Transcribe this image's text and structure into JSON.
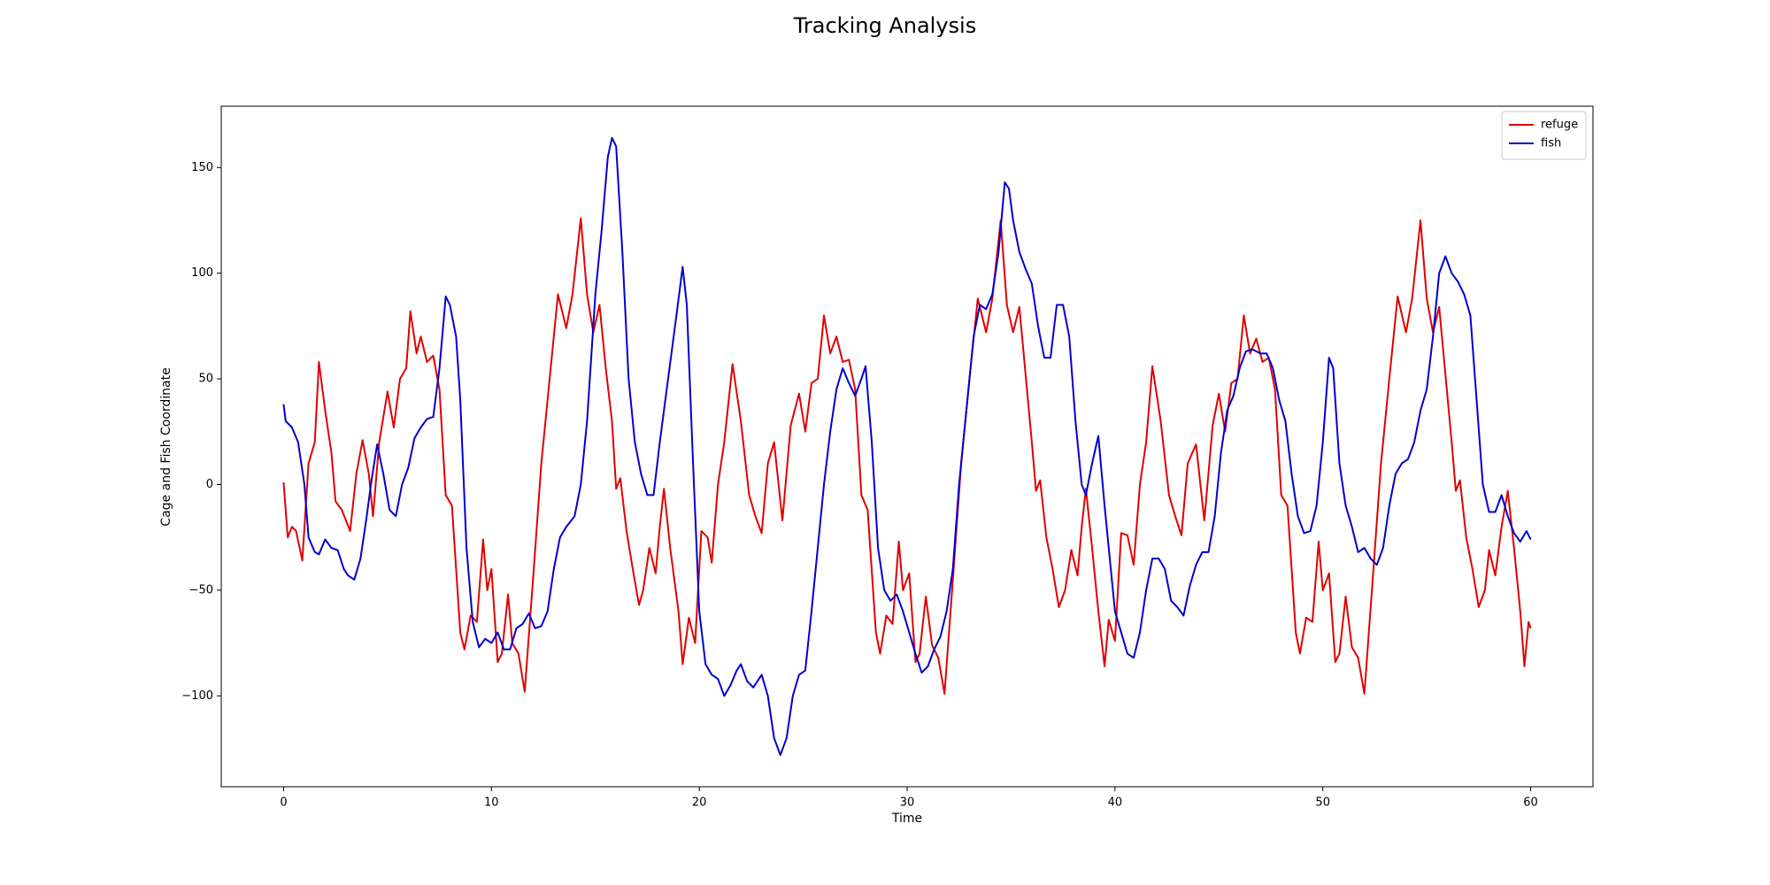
{
  "chart_data": {
    "type": "line",
    "title": "Tracking Analysis",
    "x_label": "Time",
    "y_label": "Cage and Fish Coordinate",
    "xlim": [
      -3,
      63
    ],
    "ylim": [
      -143,
      179
    ],
    "xticks": [
      0,
      10,
      20,
      30,
      40,
      50,
      60
    ],
    "yticks": [
      {
        "value": -100,
        "label": "−100"
      },
      {
        "value": -50,
        "label": "−50"
      },
      0,
      50,
      100,
      150
    ],
    "legend": "upper right",
    "series": [
      {
        "name": "refuge",
        "color": "#e00000",
        "x": [
          0,
          0.2,
          0.4,
          0.6,
          0.9,
          1.2,
          1.5,
          1.7,
          2.0,
          2.3,
          2.5,
          2.8,
          3.2,
          3.5,
          3.8,
          4.1,
          4.3,
          4.6,
          5.0,
          5.3,
          5.6,
          5.9,
          6.1,
          6.4,
          6.6,
          6.9,
          7.2,
          7.5,
          7.8,
          8.1,
          8.5,
          8.7,
          9.0,
          9.3,
          9.6,
          9.8,
          10.0,
          10.3,
          10.5,
          10.8,
          11.0,
          11.3,
          11.6,
          12.0,
          12.4,
          12.8,
          13.2,
          13.6,
          13.9,
          14.3,
          14.6,
          14.9,
          15.2,
          15.5,
          15.8,
          16.0,
          16.2,
          16.5,
          16.8,
          17.1,
          17.3,
          17.6,
          17.9,
          18.1,
          18.3,
          18.6,
          19.0,
          19.2,
          19.5,
          19.8,
          20.1,
          20.4,
          20.6,
          20.9,
          21.2,
          21.6,
          22.0,
          22.4,
          22.7,
          23.0,
          23.3,
          23.6,
          24.0,
          24.4,
          24.8,
          25.1,
          25.4,
          25.7,
          26.0,
          26.3,
          26.6,
          26.9,
          27.2,
          27.5,
          27.8,
          28.1,
          28.5,
          28.7,
          29.0,
          29.3,
          29.6,
          29.8,
          30.1,
          30.4,
          30.6,
          30.9,
          31.2,
          31.5,
          31.8,
          32.2,
          32.6,
          33.0,
          33.4,
          33.8,
          34.1,
          34.5,
          34.8,
          35.1,
          35.4,
          35.7,
          36.0,
          36.2,
          36.4,
          36.7,
          37.0,
          37.3,
          37.6,
          37.9,
          38.2,
          38.4,
          38.6,
          38.9,
          39.2,
          39.5,
          39.7,
          40.0,
          40.3,
          40.6,
          40.9,
          41.2,
          41.5,
          41.8,
          42.2,
          42.6,
          42.9,
          43.2,
          43.5,
          43.9,
          44.3,
          44.7,
          45.0,
          45.3,
          45.6,
          45.9,
          46.2,
          46.5,
          46.8,
          47.1,
          47.4,
          47.7,
          48.0,
          48.3,
          48.7,
          48.9,
          49.2,
          49.5,
          49.8,
          50.0,
          50.3,
          50.6,
          50.8,
          51.1,
          51.4,
          51.7,
          52.0,
          52.4,
          52.8,
          53.2,
          53.6,
          54.0,
          54.3,
          54.7,
          55.0,
          55.3,
          55.6,
          55.9,
          56.2,
          56.4,
          56.6,
          56.9,
          57.2,
          57.5,
          57.8,
          58.0,
          58.3,
          58.6,
          58.9,
          59.2,
          59.5,
          59.7,
          59.9,
          60.0
        ],
        "values": [
          1,
          -25,
          -20,
          -22,
          -36,
          10,
          20,
          58,
          35,
          15,
          -8,
          -12,
          -22,
          5,
          21,
          5,
          -15,
          20,
          44,
          27,
          50,
          55,
          82,
          62,
          70,
          58,
          61,
          45,
          -5,
          -10,
          -70,
          -78,
          -62,
          -65,
          -26,
          -50,
          -40,
          -84,
          -80,
          -52,
          -75,
          -80,
          -98,
          -45,
          10,
          50,
          90,
          74,
          90,
          126,
          90,
          72,
          85,
          55,
          30,
          -2,
          3,
          -22,
          -40,
          -57,
          -50,
          -30,
          -42,
          -20,
          -2,
          -30,
          -60,
          -85,
          -63,
          -75,
          -22,
          -25,
          -37,
          0,
          20,
          57,
          30,
          -5,
          -15,
          -23,
          10,
          20,
          -17,
          28,
          43,
          25,
          48,
          50,
          80,
          62,
          70,
          58,
          59,
          45,
          -5,
          -12,
          -70,
          -80,
          -62,
          -66,
          -27,
          -50,
          -42,
          -84,
          -80,
          -53,
          -76,
          -82,
          -99,
          -45,
          10,
          50,
          88,
          72,
          88,
          125,
          85,
          72,
          84,
          52,
          20,
          -3,
          2,
          -25,
          -40,
          -58,
          -50,
          -31,
          -43,
          -20,
          -2,
          -30,
          -60,
          -86,
          -64,
          -74,
          -23,
          -24,
          -38,
          0,
          20,
          56,
          30,
          -5,
          -15,
          -24,
          10,
          19,
          -17,
          28,
          43,
          25,
          48,
          50,
          80,
          62,
          69,
          58,
          60,
          45,
          -5,
          -10,
          -70,
          -80,
          -63,
          -65,
          -27,
          -50,
          -42,
          -84,
          -80,
          -53,
          -77,
          -82,
          -99,
          -45,
          10,
          50,
          89,
          72,
          88,
          125,
          88,
          72,
          84,
          52,
          20,
          -3,
          2,
          -25,
          -40,
          -58,
          -50,
          -31,
          -43,
          -20,
          -3,
          -30,
          -60,
          -86,
          -65,
          -68
        ]
      },
      {
        "name": "fish",
        "color": "#0000d0",
        "x": [
          0,
          0.1,
          0.4,
          0.7,
          1.0,
          1.2,
          1.5,
          1.7,
          2.0,
          2.3,
          2.6,
          2.9,
          3.1,
          3.4,
          3.7,
          4.0,
          4.2,
          4.5,
          4.8,
          5.1,
          5.4,
          5.7,
          6.0,
          6.3,
          6.6,
          6.9,
          7.2,
          7.5,
          7.8,
          8.0,
          8.3,
          8.5,
          8.8,
          9.1,
          9.4,
          9.7,
          10.0,
          10.3,
          10.6,
          10.9,
          11.2,
          11.5,
          11.8,
          12.1,
          12.4,
          12.7,
          13.0,
          13.3,
          13.6,
          14.0,
          14.3,
          14.6,
          15.0,
          15.3,
          15.6,
          15.8,
          16.0,
          16.3,
          16.6,
          16.9,
          17.2,
          17.5,
          17.8,
          18.1,
          18.5,
          18.9,
          19.2,
          19.4,
          19.7,
          20.0,
          20.3,
          20.6,
          20.9,
          21.2,
          21.5,
          21.8,
          22.0,
          22.3,
          22.6,
          23.0,
          23.3,
          23.6,
          23.9,
          24.2,
          24.5,
          24.8,
          25.1,
          25.4,
          25.7,
          26.0,
          26.3,
          26.6,
          26.9,
          27.2,
          27.5,
          27.8,
          28.0,
          28.3,
          28.6,
          28.9,
          29.2,
          29.5,
          29.8,
          30.1,
          30.4,
          30.7,
          31.0,
          31.3,
          31.6,
          31.9,
          32.2,
          32.5,
          32.9,
          33.2,
          33.5,
          33.8,
          34.1,
          34.4,
          34.7,
          34.9,
          35.1,
          35.4,
          35.7,
          36.0,
          36.3,
          36.6,
          36.9,
          37.2,
          37.5,
          37.8,
          38.1,
          38.4,
          38.6,
          38.9,
          39.2,
          39.5,
          39.8,
          40.0,
          40.3,
          40.6,
          40.9,
          41.2,
          41.5,
          41.8,
          42.1,
          42.4,
          42.7,
          43.0,
          43.3,
          43.6,
          43.9,
          44.2,
          44.5,
          44.8,
          45.1,
          45.4,
          45.7,
          46.0,
          46.3,
          46.6,
          47.0,
          47.3,
          47.6,
          47.9,
          48.2,
          48.5,
          48.8,
          49.1,
          49.4,
          49.7,
          50.0,
          50.3,
          50.5,
          50.8,
          51.1,
          51.4,
          51.7,
          52.0,
          52.3,
          52.6,
          52.9,
          53.2,
          53.5,
          53.8,
          54.1,
          54.4,
          54.7,
          55.0,
          55.3,
          55.6,
          55.9,
          56.2,
          56.5,
          56.8,
          57.1,
          57.4,
          57.7,
          58.0,
          58.3,
          58.6,
          58.9,
          59.2,
          59.5,
          59.8,
          60.0
        ],
        "values": [
          38,
          30,
          27,
          20,
          0,
          -25,
          -32,
          -33,
          -26,
          -30,
          -31,
          -40,
          -43,
          -45,
          -35,
          -15,
          0,
          19,
          5,
          -12,
          -15,
          0,
          8,
          22,
          27,
          31,
          32,
          55,
          89,
          85,
          70,
          40,
          -30,
          -65,
          -77,
          -73,
          -75,
          -70,
          -78,
          -78,
          -68,
          -66,
          -61,
          -68,
          -67,
          -60,
          -40,
          -25,
          -20,
          -15,
          0,
          30,
          90,
          120,
          155,
          164,
          160,
          110,
          50,
          20,
          5,
          -5,
          -5,
          20,
          50,
          80,
          103,
          85,
          10,
          -60,
          -85,
          -90,
          -92,
          -100,
          -95,
          -88,
          -85,
          -93,
          -96,
          -90,
          -100,
          -120,
          -128,
          -120,
          -100,
          -90,
          -88,
          -60,
          -30,
          0,
          25,
          45,
          55,
          48,
          42,
          50,
          56,
          20,
          -30,
          -50,
          -55,
          -52,
          -60,
          -70,
          -80,
          -89,
          -86,
          -78,
          -72,
          -60,
          -40,
          0,
          40,
          70,
          85,
          83,
          90,
          110,
          143,
          140,
          125,
          110,
          102,
          95,
          75,
          60,
          60,
          85,
          85,
          70,
          30,
          0,
          -5,
          10,
          23,
          -10,
          -40,
          -60,
          -70,
          -80,
          -82,
          -70,
          -50,
          -35,
          -35,
          -40,
          -55,
          -58,
          -62,
          -48,
          -38,
          -32,
          -32,
          -15,
          15,
          35,
          42,
          55,
          63,
          64,
          62,
          62,
          55,
          40,
          30,
          5,
          -15,
          -23,
          -22,
          -10,
          20,
          60,
          55,
          10,
          -10,
          -20,
          -32,
          -30,
          -35,
          -38,
          -30,
          -10,
          5,
          10,
          12,
          20,
          35,
          45,
          70,
          100,
          108,
          100,
          96,
          90,
          80,
          40,
          0,
          -13,
          -13,
          -5,
          -15,
          -23,
          -27,
          -22,
          -26
        ]
      }
    ]
  }
}
